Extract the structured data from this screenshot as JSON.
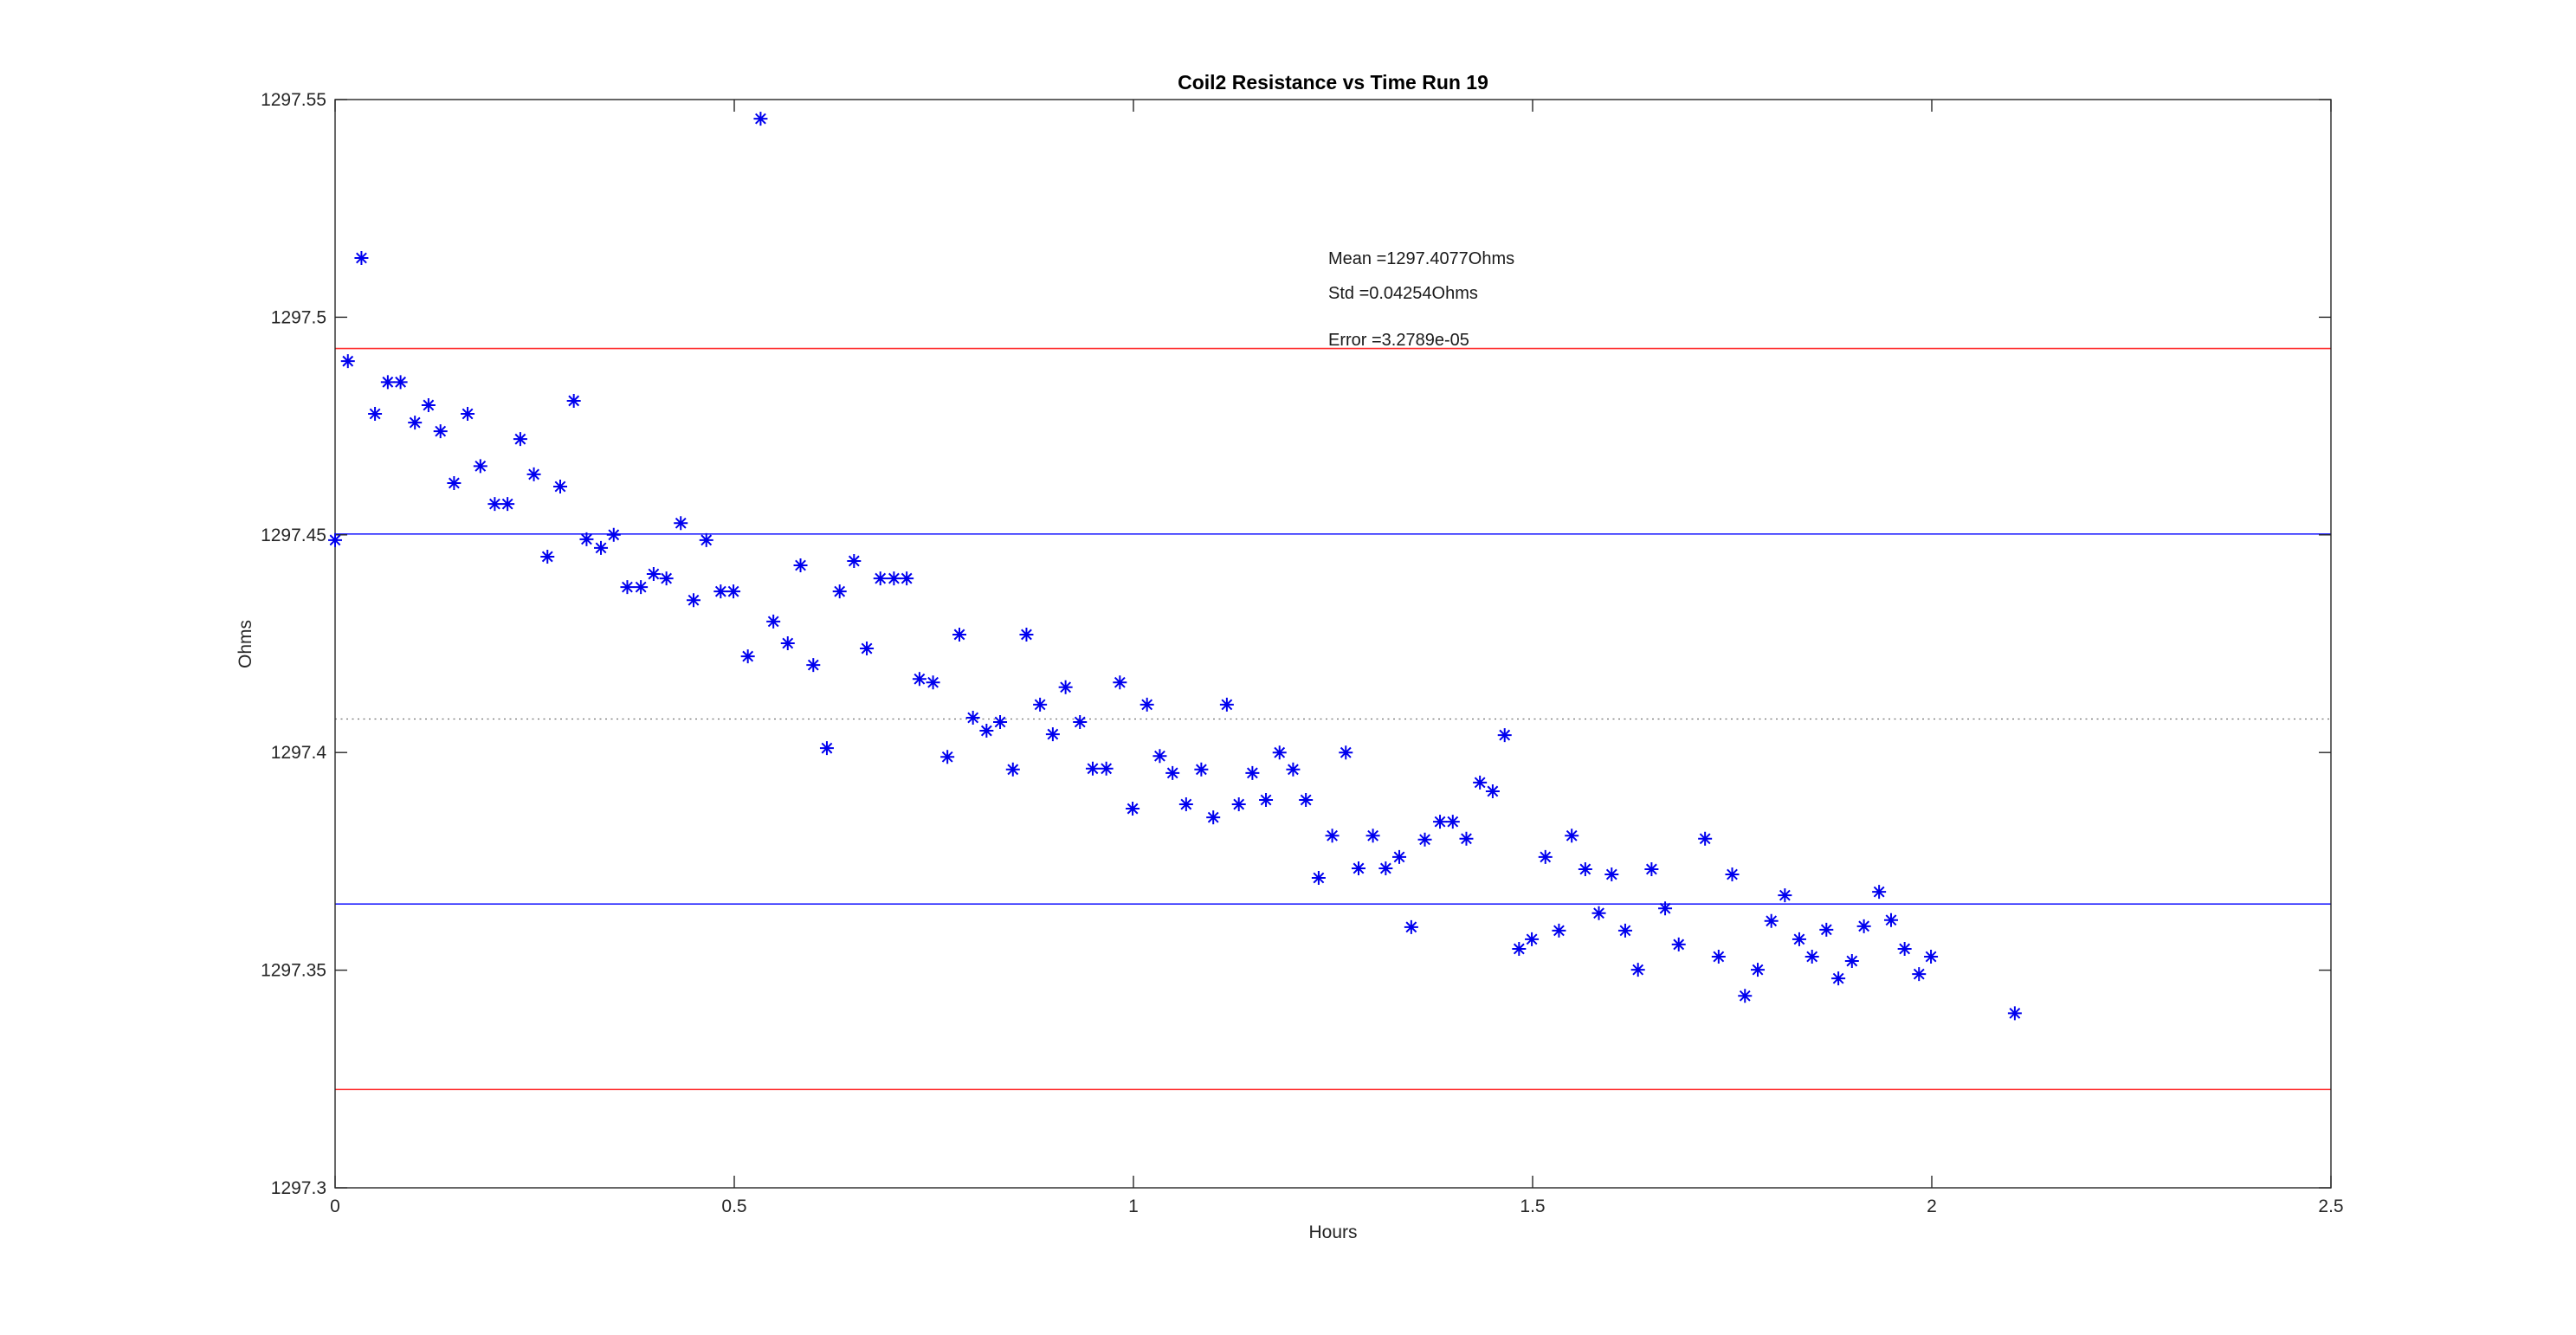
{
  "figure": {
    "title": "Coil2 Resistance vs Time Run 19",
    "xlabel": "Hours",
    "ylabel": "Ohms"
  },
  "annotations": {
    "mean_label": "Mean =1297.4077Ohms",
    "std_label": "Std =0.04254Ohms",
    "error_label": "Error =3.2789e-05"
  },
  "colors": {
    "marker": "#0000ee",
    "sigma_line": "#2323ff",
    "two_sigma_line": "#ff3030",
    "mean_line": "#737373",
    "axis": "#262626",
    "text": "#1a1a1a"
  },
  "chart_data": {
    "type": "scatter",
    "title": "Coil2 Resistance vs Time Run 19",
    "xlabel": "Hours",
    "ylabel": "Ohms",
    "xlim": [
      0,
      2.5
    ],
    "ylim": [
      1297.3,
      1297.55
    ],
    "grid": false,
    "xticks": [
      0,
      0.5,
      1,
      1.5,
      2,
      2.5
    ],
    "xtick_labels": [
      "0",
      "0.5",
      "1",
      "1.5",
      "2",
      "2.5"
    ],
    "yticks": [
      1297.3,
      1297.35,
      1297.4,
      1297.45,
      1297.5,
      1297.55
    ],
    "ytick_labels": [
      "1297.3",
      "1297.35",
      "1297.4",
      "1297.45",
      "1297.5",
      "1297.55"
    ],
    "stats": {
      "mean_ohms": 1297.4077,
      "std_ohms": 0.04254,
      "error": 3.2789e-05
    },
    "reference_lines": [
      {
        "name": "mean-plus-2std",
        "value": 1297.4928,
        "color": "#ff3030",
        "style": "solid"
      },
      {
        "name": "mean-plus-1std",
        "value": 1297.4502,
        "color": "#2323ff",
        "style": "solid"
      },
      {
        "name": "mean",
        "value": 1297.4077,
        "color": "#737373",
        "style": "dotted"
      },
      {
        "name": "mean-minus-1std",
        "value": 1297.3652,
        "color": "#2323ff",
        "style": "solid"
      },
      {
        "name": "mean-minus-2std",
        "value": 1297.3226,
        "color": "#ff3030",
        "style": "solid"
      }
    ],
    "series": [
      {
        "name": "Coil2 resistance",
        "marker": "asterisk",
        "color": "#0000ee",
        "points": [
          [
            0.0,
            1297.4488
          ],
          [
            0.016,
            1297.4899
          ],
          [
            0.033,
            1297.5136
          ],
          [
            0.05,
            1297.4778
          ],
          [
            0.066,
            1297.4851
          ],
          [
            0.082,
            1297.4851
          ],
          [
            0.1,
            1297.4758
          ],
          [
            0.117,
            1297.4798
          ],
          [
            0.132,
            1297.4738
          ],
          [
            0.149,
            1297.4619
          ],
          [
            0.166,
            1297.4778
          ],
          [
            0.182,
            1297.4658
          ],
          [
            0.2,
            1297.4571
          ],
          [
            0.216,
            1297.4571
          ],
          [
            0.232,
            1297.472
          ],
          [
            0.249,
            1297.4639
          ],
          [
            0.266,
            1297.445
          ],
          [
            0.282,
            1297.4611
          ],
          [
            0.299,
            1297.4808
          ],
          [
            0.315,
            1297.449
          ],
          [
            0.333,
            1297.447
          ],
          [
            0.349,
            1297.45
          ],
          [
            0.366,
            1297.438
          ],
          [
            0.383,
            1297.438
          ],
          [
            0.399,
            1297.441
          ],
          [
            0.415,
            1297.44
          ],
          [
            0.433,
            1297.4527
          ],
          [
            0.449,
            1297.435
          ],
          [
            0.465,
            1297.4488
          ],
          [
            0.483,
            1297.437
          ],
          [
            0.499,
            1297.437
          ],
          [
            0.517,
            1297.4221
          ],
          [
            0.533,
            1297.5456
          ],
          [
            0.549,
            1297.4301
          ],
          [
            0.567,
            1297.4251
          ],
          [
            0.583,
            1297.443
          ],
          [
            0.599,
            1297.4201
          ],
          [
            0.616,
            1297.401
          ],
          [
            0.632,
            1297.437
          ],
          [
            0.65,
            1297.444
          ],
          [
            0.666,
            1297.4239
          ],
          [
            0.683,
            1297.44
          ],
          [
            0.7,
            1297.44
          ],
          [
            0.716,
            1297.44
          ],
          [
            0.732,
            1297.4169
          ],
          [
            0.749,
            1297.4161
          ],
          [
            0.767,
            1297.399
          ],
          [
            0.782,
            1297.4271
          ],
          [
            0.799,
            1297.408
          ],
          [
            0.816,
            1297.405
          ],
          [
            0.833,
            1297.407
          ],
          [
            0.849,
            1297.3961
          ],
          [
            0.866,
            1297.4271
          ],
          [
            0.883,
            1297.411
          ],
          [
            0.899,
            1297.4042
          ],
          [
            0.915,
            1297.415
          ],
          [
            0.933,
            1297.407
          ],
          [
            0.949,
            1297.3963
          ],
          [
            0.966,
            1297.3963
          ],
          [
            0.983,
            1297.4161
          ],
          [
            0.999,
            1297.3871
          ],
          [
            1.017,
            1297.411
          ],
          [
            1.033,
            1297.3992
          ],
          [
            1.049,
            1297.3953
          ],
          [
            1.066,
            1297.3881
          ],
          [
            1.085,
            1297.3961
          ],
          [
            1.1,
            1297.3851
          ],
          [
            1.117,
            1297.411
          ],
          [
            1.132,
            1297.3881
          ],
          [
            1.149,
            1297.3953
          ],
          [
            1.166,
            1297.3891
          ],
          [
            1.183,
            1297.4
          ],
          [
            1.2,
            1297.3961
          ],
          [
            1.216,
            1297.3891
          ],
          [
            1.232,
            1297.3712
          ],
          [
            1.249,
            1297.3809
          ],
          [
            1.266,
            1297.4
          ],
          [
            1.282,
            1297.3734
          ],
          [
            1.3,
            1297.3809
          ],
          [
            1.316,
            1297.3734
          ],
          [
            1.333,
            1297.376
          ],
          [
            1.348,
            1297.3599
          ],
          [
            1.365,
            1297.38
          ],
          [
            1.384,
            1297.3841
          ],
          [
            1.4,
            1297.3841
          ],
          [
            1.417,
            1297.3802
          ],
          [
            1.434,
            1297.3931
          ],
          [
            1.45,
            1297.3911
          ],
          [
            1.465,
            1297.404
          ],
          [
            1.483,
            1297.3549
          ],
          [
            1.499,
            1297.3571
          ],
          [
            1.516,
            1297.376
          ],
          [
            1.533,
            1297.3591
          ],
          [
            1.549,
            1297.3809
          ],
          [
            1.566,
            1297.3732
          ],
          [
            1.583,
            1297.3631
          ],
          [
            1.599,
            1297.372
          ],
          [
            1.616,
            1297.3591
          ],
          [
            1.632,
            1297.3501
          ],
          [
            1.649,
            1297.3732
          ],
          [
            1.666,
            1297.3642
          ],
          [
            1.683,
            1297.3559
          ],
          [
            1.716,
            1297.3802
          ],
          [
            1.733,
            1297.3531
          ],
          [
            1.75,
            1297.372
          ],
          [
            1.766,
            1297.3441
          ],
          [
            1.782,
            1297.3501
          ],
          [
            1.799,
            1297.3613
          ],
          [
            1.816,
            1297.3672
          ],
          [
            1.834,
            1297.3571
          ],
          [
            1.85,
            1297.3531
          ],
          [
            1.868,
            1297.3593
          ],
          [
            1.883,
            1297.3481
          ],
          [
            1.9,
            1297.3521
          ],
          [
            1.915,
            1297.3601
          ],
          [
            1.934,
            1297.368
          ],
          [
            1.949,
            1297.3615
          ],
          [
            1.966,
            1297.3549
          ],
          [
            1.984,
            1297.3491
          ],
          [
            1.999,
            1297.3531
          ],
          [
            2.104,
            1297.3401
          ]
        ]
      }
    ]
  }
}
